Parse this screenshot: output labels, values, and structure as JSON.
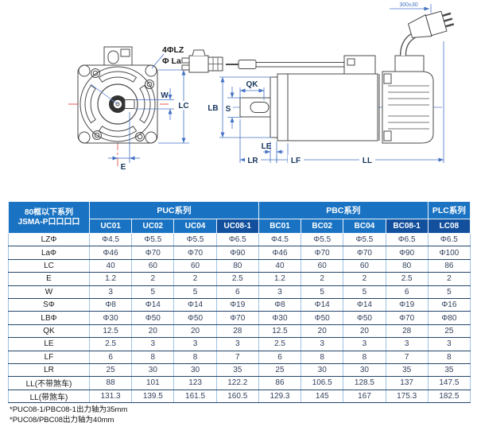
{
  "drawing": {
    "front_view": {
      "hole_callout": "4ΦLZ",
      "flange_callout": "Φ La",
      "dim_w": "W",
      "dim_lc": "LC",
      "dim_e": "E"
    },
    "side_view": {
      "dim_lb": "LB",
      "dim_s": "S",
      "dim_qk": "QK",
      "dim_le": "LE",
      "dim_lr": "LR",
      "dim_lf": "LF",
      "dim_ll": "LL",
      "cable_length": "300±30"
    }
  },
  "table": {
    "corner_header": {
      "line1": "80框以下系列",
      "line2": "JSMA-P口口口口"
    },
    "groups": [
      {
        "label": "PUC系列",
        "columns": [
          "UC01",
          "UC02",
          "UC04",
          "UC08-1"
        ]
      },
      {
        "label": "PBC系列",
        "columns": [
          "BC01",
          "BC02",
          "BC04",
          "BC08-1"
        ]
      },
      {
        "label": "PLC系列",
        "columns": [
          "LC08"
        ]
      }
    ],
    "highlighted_columns": [
      "UC08-1",
      "BC08-1",
      "LC08"
    ],
    "rows": [
      {
        "label": "LZΦ",
        "values": [
          "Φ4.5",
          "Φ5.5",
          "Φ5.5",
          "Φ6.5",
          "Φ4.5",
          "Φ5.5",
          "Φ5.5",
          "Φ6.5",
          "Φ6.5"
        ]
      },
      {
        "label": "LaΦ",
        "values": [
          "Φ46",
          "Φ70",
          "Φ70",
          "Φ90",
          "Φ46",
          "Φ70",
          "Φ70",
          "Φ90",
          "Φ100"
        ]
      },
      {
        "label": "LC",
        "values": [
          "40",
          "60",
          "60",
          "80",
          "40",
          "60",
          "60",
          "80",
          "86"
        ]
      },
      {
        "label": "E",
        "values": [
          "1.2",
          "2",
          "2",
          "2.5",
          "1.2",
          "2",
          "2",
          "2.5",
          "2"
        ]
      },
      {
        "label": "W",
        "values": [
          "3",
          "5",
          "5",
          "6",
          "3",
          "5",
          "5",
          "6",
          "5"
        ]
      },
      {
        "label": "SΦ",
        "values": [
          "Φ8",
          "Φ14",
          "Φ14",
          "Φ19",
          "Φ8",
          "Φ14",
          "Φ14",
          "Φ19",
          "Φ16"
        ]
      },
      {
        "label": "LBΦ",
        "values": [
          "Φ30",
          "Φ50",
          "Φ50",
          "Φ70",
          "Φ30",
          "Φ50",
          "Φ50",
          "Φ70",
          "Φ80"
        ]
      },
      {
        "label": "QK",
        "values": [
          "12.5",
          "20",
          "20",
          "28",
          "12.5",
          "20",
          "20",
          "28",
          "25"
        ]
      },
      {
        "label": "LE",
        "values": [
          "2.5",
          "3",
          "3",
          "3",
          "2.5",
          "3",
          "3",
          "3",
          "3"
        ]
      },
      {
        "label": "LF",
        "values": [
          "6",
          "8",
          "8",
          "7",
          "6",
          "8",
          "8",
          "7",
          "8"
        ]
      },
      {
        "label": "LR",
        "values": [
          "25",
          "30",
          "30",
          "35",
          "25",
          "30",
          "30",
          "35",
          "35"
        ]
      },
      {
        "label": "LL(不带煞车)",
        "values": [
          "88",
          "101",
          "123",
          "122.2",
          "86",
          "106.5",
          "128.5",
          "137",
          "147.5"
        ]
      },
      {
        "label": "LL(带煞车)",
        "values": [
          "131.3",
          "139.5",
          "161.5",
          "160.5",
          "129.3",
          "145",
          "167",
          "175.3",
          "182.5"
        ]
      }
    ]
  },
  "footnotes": [
    "*PUC08-1/PBC08-1出力轴为35mm",
    "*PUC08/PBC08出力轴为40mm"
  ],
  "colors": {
    "header_blue": "#1a73c2",
    "header_dark_blue": "#124f9c",
    "dimension_blue": "#4472c4",
    "centerline_red": "#e05a52"
  }
}
